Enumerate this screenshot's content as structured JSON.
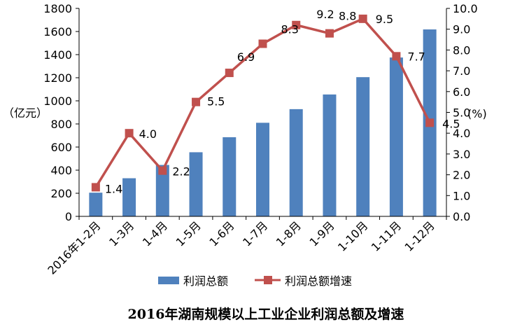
{
  "chart_data": {
    "type": "bar",
    "title": "2016年湖南规模以上工业企业利润总额及增速",
    "categories": [
      "2016年1-2月",
      "1-3月",
      "1-4月",
      "1-5月",
      "1-6月",
      "1-7月",
      "1-8月",
      "1-9月",
      "1-10月",
      "1-11月",
      "1-12月"
    ],
    "series": [
      {
        "name": "利润总额",
        "type": "bar",
        "axis": "left",
        "color": "#4f81bd",
        "values": [
          205,
          330,
          445,
          555,
          685,
          810,
          928,
          1055,
          1205,
          1375,
          1618
        ]
      },
      {
        "name": "利润总额增速",
        "type": "line",
        "axis": "right",
        "color": "#c0504d",
        "values": [
          1.4,
          4.0,
          2.2,
          5.5,
          6.9,
          8.3,
          9.2,
          8.8,
          9.5,
          7.7,
          4.5
        ],
        "labels": [
          "1.4",
          "4.0",
          "2.2",
          "5.5",
          "6.9",
          "8.3",
          "9.2",
          "8.8",
          "9.5",
          "7.7",
          "4.5"
        ]
      }
    ],
    "y_left": {
      "label": "（亿元）",
      "ylim": [
        0,
        1800
      ],
      "ticks": [
        "0",
        "200",
        "400",
        "600",
        "800",
        "1000",
        "1200",
        "1400",
        "1600",
        "1800"
      ]
    },
    "y_right": {
      "label": "(%)",
      "ylim": [
        0,
        10
      ],
      "ticks": [
        "0.0",
        "1.0",
        "2.0",
        "3.0",
        "4.0",
        "5.0",
        "6.0",
        "7.0",
        "8.0",
        "9.0",
        "10.0"
      ]
    },
    "grid": false,
    "legend_position": "bottom"
  }
}
